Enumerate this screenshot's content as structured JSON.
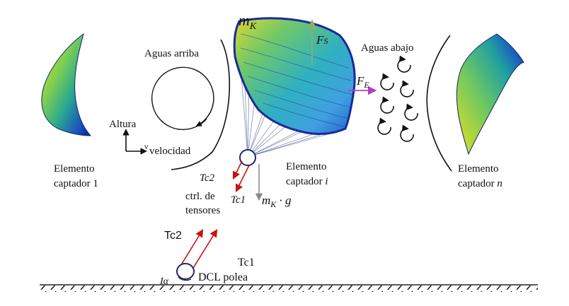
{
  "labels": {
    "mass": "m",
    "mass_sub": "K",
    "fs_main": "F",
    "fs_sub": "S",
    "fe_main": "F",
    "fe_sub": "E",
    "upstream": "Aguas arriba",
    "downstream": "Aguas abajo",
    "altura": "Altura",
    "nu": "ν",
    "velocidad": "velocidad",
    "elem1_line1": "Elemento",
    "elem1_line2": "captador 1",
    "elemi_line1": "Elemento",
    "elemi_line2": "captador",
    "elemi_idx": "i",
    "elemn_line1": "Elemento",
    "elemn_line2": "captador",
    "elemn_idx": "n",
    "tc2_italic": "Tc2",
    "tc1_italic": "Tc1",
    "ctrl_line1": "ctrl. de",
    "ctrl_line2": "tensores",
    "weight": "m",
    "weight_sub": "K",
    "weight_g": " · g",
    "tc2": "Tc2",
    "tc1": "Tc1",
    "ia": "Iα",
    "dcl": "DCL polea"
  },
  "colors": {
    "force_fs": "#8ab06a",
    "force_fe": "#b040c0",
    "tension": "#cc1111",
    "weight": "#888888",
    "lines": "#2a3a8a",
    "kite_dark": "#1a2a9a"
  }
}
